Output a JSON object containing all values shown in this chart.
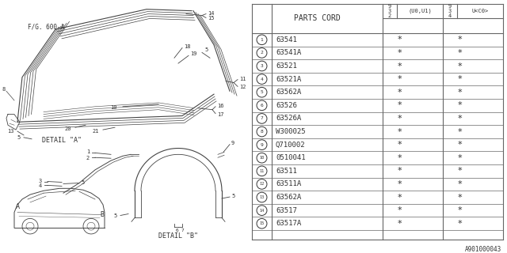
{
  "part_numbers": [
    "63541",
    "63541A",
    "63521",
    "63521A",
    "63562A",
    "63526",
    "63526A",
    "W300025",
    "Q710002",
    "0510041",
    "63511",
    "63511A",
    "63562A",
    "63517",
    "63517A"
  ],
  "item_nums": [
    1,
    2,
    3,
    4,
    5,
    6,
    7,
    8,
    9,
    10,
    11,
    12,
    13,
    14,
    15
  ],
  "col_header1": "PARTS CORD",
  "footer": "A901000043",
  "bg_color": "#f5f3ee",
  "line_color": "#444444",
  "table_line_color": "#666666",
  "text_color": "#333333",
  "white": "#ffffff"
}
